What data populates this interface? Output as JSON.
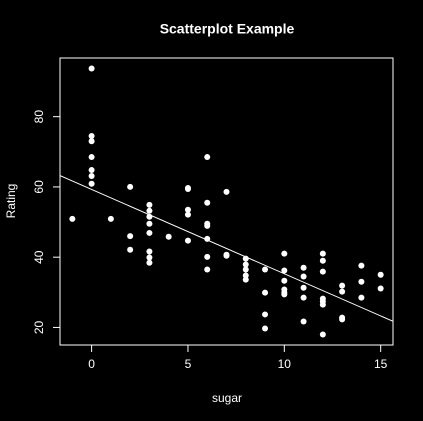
{
  "chart_data": {
    "type": "scatter",
    "title": "Scatterplot Example",
    "x_label": "sugar",
    "y_label": "Rating",
    "x": [
      -1,
      0,
      0,
      0,
      0,
      0,
      0,
      0,
      1,
      2,
      2,
      2,
      3,
      3,
      3,
      3,
      3,
      3,
      3,
      3,
      4,
      5,
      5,
      5,
      5,
      5,
      6,
      6,
      6,
      6,
      6,
      6,
      6,
      7,
      7,
      7,
      8,
      8,
      8,
      8,
      8,
      9,
      9,
      9,
      9,
      10,
      10,
      10,
      10,
      10,
      10,
      11,
      11,
      11,
      11,
      11,
      12,
      12,
      12,
      12,
      12,
      12,
      12,
      13,
      13,
      13,
      13,
      14,
      14,
      14,
      15,
      15
    ],
    "y": [
      50.9,
      93.7,
      74.5,
      73,
      68.5,
      64.8,
      63.1,
      60.9,
      50.9,
      60,
      46,
      42.1,
      54.9,
      53.2,
      51.5,
      49.5,
      46.9,
      41.6,
      39.9,
      38.4,
      45.8,
      59.7,
      59.4,
      53.5,
      52.1,
      44.7,
      68.5,
      55.5,
      49.5,
      48.9,
      45.2,
      40.1,
      36.5,
      58.6,
      40.7,
      40.4,
      39.6,
      37.9,
      36.5,
      34.8,
      33.6,
      36.5,
      29.9,
      23.7,
      19.7,
      41,
      36.2,
      33.3,
      30.8,
      29.9,
      29.4,
      37,
      34.5,
      31.3,
      28.5,
      21.7,
      41,
      39,
      35.9,
      28.2,
      27.4,
      26.5,
      18,
      31.9,
      30.2,
      22.8,
      22.3,
      37.6,
      33,
      28.5,
      35,
      31.1
    ],
    "color": "#ffffff",
    "fit": {
      "intercept": 59.28,
      "slope": -2.4,
      "color": "#ffffff"
    },
    "xlim": [
      -1.64,
      15.64
    ],
    "xticks": [
      0,
      5,
      10,
      15
    ],
    "ylim": [
      15.0,
      96.7
    ],
    "yticks": [
      20,
      40,
      60,
      80
    ]
  }
}
